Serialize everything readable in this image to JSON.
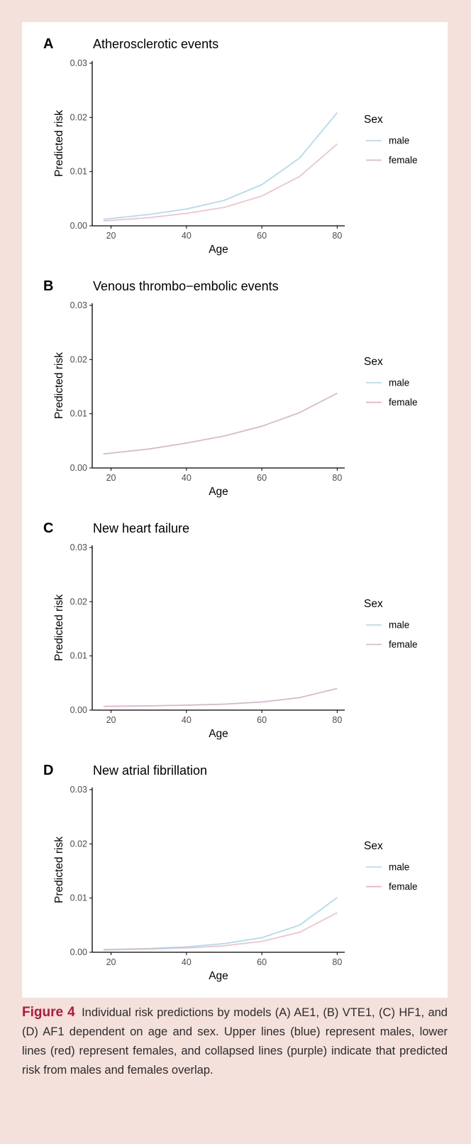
{
  "colors": {
    "male": "#a9d8f3",
    "female": "#f0a6bc",
    "axis": "#000000",
    "tick_text": "#4d4d4d",
    "figure_background": "#f5e1dc",
    "figure_label": "#b5173a"
  },
  "caption": {
    "figure_label": "Figure 4",
    "text": "Individual risk predictions by models (A) AE1, (B) VTE1, (C) HF1, and (D) AF1 dependent on age and sex. Upper lines (blue) represent males, lower lines (red) represent females, and collapsed lines (purple) indicate that predicted risk from males and females overlap."
  },
  "chart_data": [
    {
      "type": "line",
      "panel_label": "A",
      "title": "Atherosclerotic events",
      "xlabel": "Age",
      "ylabel": "Predicted risk",
      "xlim": [
        15,
        82
      ],
      "ylim": [
        0,
        0.03
      ],
      "x_ticks": [
        20,
        40,
        60,
        80
      ],
      "y_ticks": [
        "0.00",
        "0.01",
        "0.02",
        "0.03"
      ],
      "legend_title": "Sex",
      "legend_position": "right",
      "grid": false,
      "x": [
        18,
        30,
        40,
        50,
        60,
        70,
        80
      ],
      "series": [
        {
          "name": "male",
          "values": [
            0.0012,
            0.0021,
            0.0031,
            0.0047,
            0.0076,
            0.0125,
            0.0209
          ]
        },
        {
          "name": "female",
          "values": [
            0.0009,
            0.0015,
            0.0023,
            0.0034,
            0.0055,
            0.0091,
            0.0151
          ]
        }
      ]
    },
    {
      "type": "line",
      "panel_label": "B",
      "title": "Venous thrombo−embolic events",
      "xlabel": "Age",
      "ylabel": "Predicted risk",
      "xlim": [
        15,
        82
      ],
      "ylim": [
        0,
        0.03
      ],
      "x_ticks": [
        20,
        40,
        60,
        80
      ],
      "y_ticks": [
        "0.00",
        "0.01",
        "0.02",
        "0.03"
      ],
      "legend_title": "Sex",
      "legend_position": "right",
      "grid": false,
      "x": [
        18,
        30,
        40,
        50,
        60,
        70,
        80
      ],
      "series": [
        {
          "name": "male",
          "values": [
            0.0026,
            0.0035,
            0.0046,
            0.0059,
            0.0077,
            0.0102,
            0.0138
          ]
        },
        {
          "name": "female",
          "values": [
            0.0026,
            0.0035,
            0.0046,
            0.0059,
            0.0077,
            0.0102,
            0.0138
          ]
        }
      ]
    },
    {
      "type": "line",
      "panel_label": "C",
      "title": "New heart failure",
      "xlabel": "Age",
      "ylabel": "Predicted risk",
      "xlim": [
        15,
        82
      ],
      "ylim": [
        0,
        0.03
      ],
      "x_ticks": [
        20,
        40,
        60,
        80
      ],
      "y_ticks": [
        "0.00",
        "0.01",
        "0.02",
        "0.03"
      ],
      "legend_title": "Sex",
      "legend_position": "right",
      "grid": false,
      "x": [
        18,
        30,
        40,
        50,
        60,
        70,
        80
      ],
      "series": [
        {
          "name": "male",
          "values": [
            0.0007,
            0.0008,
            0.0009,
            0.0011,
            0.0015,
            0.0023,
            0.004
          ]
        },
        {
          "name": "female",
          "values": [
            0.0007,
            0.0008,
            0.0009,
            0.0011,
            0.0015,
            0.0023,
            0.004
          ]
        }
      ]
    },
    {
      "type": "line",
      "panel_label": "D",
      "title": "New atrial fibrillation",
      "xlabel": "Age",
      "ylabel": "Predicted risk",
      "xlim": [
        15,
        82
      ],
      "ylim": [
        0,
        0.03
      ],
      "x_ticks": [
        20,
        40,
        60,
        80
      ],
      "y_ticks": [
        "0.00",
        "0.01",
        "0.02",
        "0.03"
      ],
      "legend_title": "Sex",
      "legend_position": "right",
      "grid": false,
      "x": [
        18,
        30,
        40,
        50,
        60,
        70,
        80
      ],
      "series": [
        {
          "name": "male",
          "values": [
            0.0005,
            0.0007,
            0.001,
            0.0016,
            0.0027,
            0.005,
            0.0101
          ]
        },
        {
          "name": "female",
          "values": [
            0.0004,
            0.0006,
            0.0008,
            0.0012,
            0.002,
            0.0037,
            0.0073
          ]
        }
      ]
    }
  ]
}
